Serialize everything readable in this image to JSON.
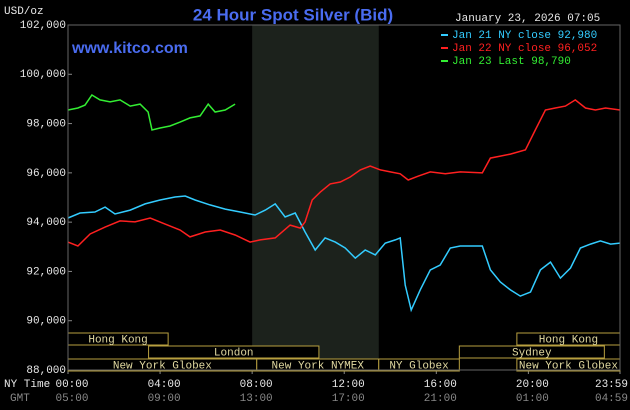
{
  "chart_data": {
    "type": "line",
    "title": "24 Hour Spot Silver (Bid)",
    "timestamp": "January 23, 2026 07:05",
    "source": "www.kitco.com",
    "y_unit_label": "USD/oz",
    "x_label": "NY Time",
    "x2_label": "GMT",
    "xlim": [
      0,
      23.98
    ],
    "xticks": [
      {
        "value": 0,
        "label": "00:00"
      },
      {
        "value": 4,
        "label": "04:00"
      },
      {
        "value": 8,
        "label": "08:00"
      },
      {
        "value": 12,
        "label": "12:00"
      },
      {
        "value": 16,
        "label": "16:00"
      },
      {
        "value": 20,
        "label": "20:00"
      },
      {
        "value": 23.98,
        "label": "23:59"
      }
    ],
    "x2tick_labels": [
      "05:00",
      "09:00",
      "13:00",
      "17:00",
      "21:00",
      "01:00",
      "04:59"
    ],
    "ylim": [
      88000,
      102000
    ],
    "yticks": [
      {
        "value": 88000,
        "label": "88,000"
      },
      {
        "value": 90000,
        "label": "90,000"
      },
      {
        "value": 92000,
        "label": "92,000"
      },
      {
        "value": 94000,
        "label": "94,000"
      },
      {
        "value": 96000,
        "label": "96,000"
      },
      {
        "value": 98000,
        "label": "98,000"
      },
      {
        "value": 100000,
        "label": "100,000"
      },
      {
        "value": 102000,
        "label": "102,000"
      }
    ],
    "highlight_x": [
      8,
      13.5
    ],
    "highlight_color": "#1c221c",
    "legend": "upper right",
    "series": [
      {
        "name": "Jan 21 NY close 92,980",
        "color": "#33ccff",
        "x": [
          0,
          0.52,
          1.17,
          1.61,
          2.04,
          2.7,
          3.35,
          4.0,
          4.65,
          5.09,
          5.52,
          6.17,
          6.83,
          7.48,
          8.13,
          8.57,
          9.0,
          9.43,
          9.87,
          10.3,
          10.74,
          11.17,
          11.61,
          12.04,
          12.48,
          12.91,
          13.35,
          13.78,
          14.22,
          14.43,
          14.65,
          14.91,
          15.3,
          15.74,
          16.17,
          16.61,
          17.04,
          17.48,
          18.0,
          18.35,
          18.78,
          19.22,
          19.65,
          20.09,
          20.52,
          20.96,
          21.39,
          21.83,
          22.26,
          22.7,
          23.13,
          23.57,
          23.98
        ],
        "values": [
          94170,
          94370,
          94410,
          94610,
          94330,
          94490,
          94740,
          94900,
          95020,
          95060,
          94900,
          94700,
          94530,
          94410,
          94290,
          94490,
          94740,
          94210,
          94370,
          93600,
          92870,
          93360,
          93190,
          92950,
          92540,
          92870,
          92670,
          93150,
          93280,
          93360,
          91450,
          90430,
          91250,
          92060,
          92260,
          92950,
          93030,
          93030,
          93030,
          92060,
          91570,
          91250,
          91000,
          91160,
          92060,
          92380,
          91730,
          92140,
          92950,
          93110,
          93240,
          93110,
          93150
        ]
      },
      {
        "name": "Jan 22 NY close 96,052",
        "color": "#ff2020",
        "x": [
          0,
          0.43,
          0.96,
          1.61,
          2.26,
          2.91,
          3.57,
          4.22,
          4.87,
          5.3,
          5.96,
          6.61,
          7.26,
          7.91,
          8.35,
          9.0,
          9.65,
          10.09,
          10.3,
          10.61,
          10.96,
          11.39,
          11.83,
          12.26,
          12.7,
          13.13,
          13.57,
          14.0,
          14.43,
          14.78,
          15.22,
          15.74,
          16.39,
          17.04,
          18.0,
          18.35,
          18.78,
          19.22,
          19.87,
          20.3,
          20.74,
          21.17,
          21.61,
          22.04,
          22.48,
          22.91,
          23.35,
          23.98
        ],
        "values": [
          93190,
          93030,
          93520,
          93800,
          94050,
          94010,
          94170,
          93920,
          93680,
          93400,
          93600,
          93680,
          93480,
          93190,
          93280,
          93360,
          93880,
          93760,
          94010,
          94900,
          95220,
          95550,
          95630,
          95830,
          96120,
          96280,
          96120,
          96040,
          95960,
          95710,
          95870,
          96040,
          95960,
          96040,
          96000,
          96600,
          96680,
          96760,
          96930,
          97740,
          98550,
          98630,
          98710,
          98960,
          98630,
          98550,
          98630,
          98550
        ]
      },
      {
        "name": "Jan 23 Last 98,790",
        "color": "#33ee33",
        "x": [
          0,
          0.43,
          0.74,
          1.04,
          1.39,
          1.83,
          2.26,
          2.7,
          3.13,
          3.48,
          3.65,
          4.0,
          4.43,
          4.87,
          5.3,
          5.74,
          6.09,
          6.39,
          6.83,
          7.26
        ],
        "values": [
          98550,
          98630,
          98750,
          99160,
          98960,
          98880,
          98960,
          98710,
          98790,
          98470,
          97740,
          97820,
          97900,
          98060,
          98230,
          98310,
          98790,
          98470,
          98550,
          98790
        ]
      }
    ],
    "sessions": [
      [
        {
          "label": "Hong Kong",
          "start": 0,
          "end": 4.35
        },
        {
          "label": "Hong Kong",
          "start": 19.5,
          "end": 23.98
        }
      ],
      [
        {
          "label": "London",
          "start": 3.5,
          "end": 10.9
        },
        {
          "label": "Sydney",
          "start": 17,
          "end": 23.3
        }
      ],
      [
        {
          "label": "New York Globex",
          "start": 0,
          "end": 8.2
        },
        {
          "label": "New York NYMEX",
          "start": 8.2,
          "end": 13.5
        },
        {
          "label": "NY Globex",
          "start": 13.5,
          "end": 17
        },
        {
          "label": "New York Globex",
          "start": 19.5,
          "end": 23.98
        }
      ]
    ]
  }
}
